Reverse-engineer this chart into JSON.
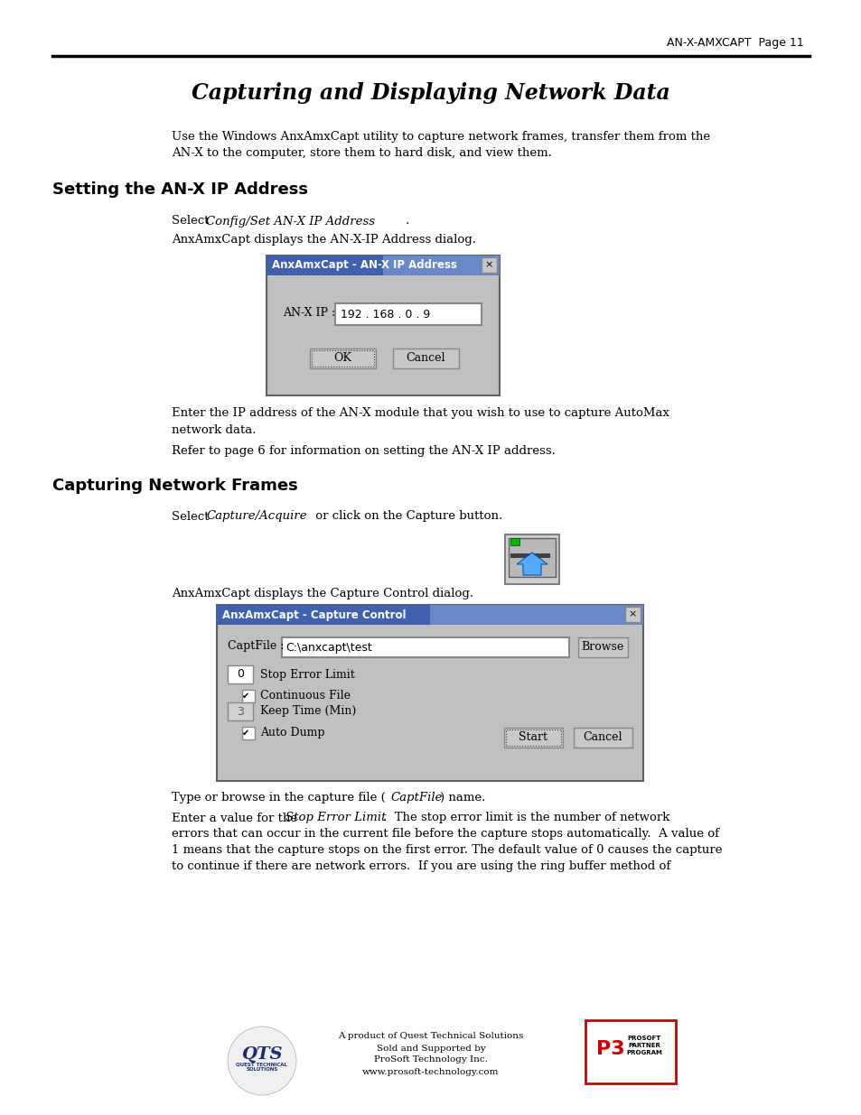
{
  "page_header": "AN-X-AMXCAPT  Page 11",
  "main_title": "Capturing and Displaying Network Data",
  "section1_title": "Setting the AN-X IP Address",
  "section1_para2": "AnxAmxCapt displays the AN-X-IP Address dialog.",
  "dialog1_title": "AnxAmxCapt - AN-X IP Address",
  "dialog1_label": "AN-X IP :",
  "dialog1_value": "192 . 168 . 0 . 9",
  "dialog1_btn1": "OK",
  "dialog1_btn2": "Cancel",
  "section1_para4": "Refer to page 6 for information on setting the AN-X IP address.",
  "section2_title": "Capturing Network Frames",
  "dialog2_title": "AnxAmxCapt - Capture Control",
  "dialog2_captfile_value": "C:\\anxcapt\\test",
  "dialog2_browse_btn": "Browse",
  "dialog2_row1_box": "0",
  "dialog2_row1_label": "Stop Error Limit",
  "dialog2_row2_label": "Continuous File",
  "dialog2_row3_box": "3",
  "dialog2_row3_label": "Keep Time (Min)",
  "dialog2_row4_label": "Auto Dump",
  "dialog2_btn1": "Start",
  "dialog2_btn2": "Cancel",
  "intro_text_line1": "Use the Windows AnxAmxCapt utility to capture network frames, transfer them from the",
  "intro_text_line2": "AN-X to the computer, store them to hard disk, and view them.",
  "para3_line1": "Enter the IP address of the AN-X module that you wish to use to capture AutoMax",
  "para3_line2": "network data.",
  "bg_color": "#ffffff",
  "text_color": "#000000",
  "header_line_color": "#000000",
  "dialog_bg": "#c0c0c0",
  "dialog_title_blue": "#4060b0",
  "dialog_border": "#606060"
}
